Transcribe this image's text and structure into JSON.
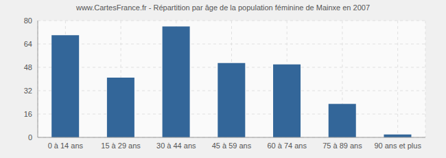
{
  "chart_data": {
    "type": "bar",
    "title": "www.CartesFrance.fr - Répartition par âge de la population féminine de Mainxe en 2007",
    "categories": [
      "0 à 14 ans",
      "15 à 29 ans",
      "30 à 44 ans",
      "45 à 59 ans",
      "60 à 74 ans",
      "75 à 89 ans",
      "90 ans et plus"
    ],
    "values": [
      70,
      41,
      76,
      51,
      50,
      23,
      2
    ],
    "color": "#336699",
    "ylim": [
      0,
      80
    ],
    "yticks": [
      0,
      16,
      32,
      48,
      64,
      80
    ],
    "grid": true
  }
}
